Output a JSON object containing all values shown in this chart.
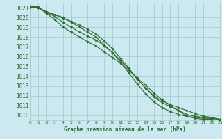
{
  "title": "Graphe pression niveau de la mer (hPa)",
  "bg_color": "#cce8f0",
  "grid_color": "#aacccc",
  "line_color": "#2d6a2d",
  "marker_color": "#2d6a2d",
  "xmin": 0,
  "xmax": 23,
  "ymin": 1009.5,
  "ymax": 1021.5,
  "yticks": [
    1010,
    1011,
    1012,
    1013,
    1014,
    1015,
    1016,
    1017,
    1018,
    1019,
    1020,
    1021
  ],
  "xticks": [
    0,
    1,
    2,
    3,
    4,
    5,
    6,
    7,
    8,
    9,
    10,
    11,
    12,
    13,
    14,
    15,
    16,
    17,
    18,
    19,
    20,
    21,
    22,
    23
  ],
  "series": [
    [
      1021.1,
      1021.1,
      1020.4,
      1019.8,
      1019.0,
      1018.5,
      1018.0,
      1017.5,
      1017.1,
      1016.5,
      1015.9,
      1015.3,
      1014.6,
      1013.8,
      1013.1,
      1012.3,
      1011.6,
      1011.0,
      1010.5,
      1009.9,
      1009.7,
      1009.6,
      1009.6,
      1009.5
    ],
    [
      1021.1,
      1021.0,
      1020.5,
      1020.3,
      1020.0,
      1019.5,
      1019.0,
      1018.5,
      1018.0,
      1017.2,
      1016.4,
      1015.4,
      1014.3,
      1013.2,
      1012.2,
      1011.4,
      1010.8,
      1010.4,
      1010.1,
      1009.9,
      1009.8,
      1009.7,
      1009.7,
      1009.6
    ],
    [
      1021.1,
      1021.0,
      1020.5,
      1020.1,
      1019.5,
      1019.0,
      1018.5,
      1018.1,
      1017.7,
      1017.1,
      1016.4,
      1015.6,
      1014.7,
      1013.7,
      1012.8,
      1011.9,
      1011.3,
      1010.9,
      1010.5,
      1010.1,
      1009.9,
      1009.8,
      1009.7,
      1009.6
    ],
    [
      1021.1,
      1021.0,
      1020.6,
      1020.3,
      1019.9,
      1019.6,
      1019.2,
      1018.8,
      1018.3,
      1017.6,
      1016.8,
      1015.8,
      1014.8,
      1013.7,
      1012.8,
      1012.0,
      1011.5,
      1011.1,
      1010.8,
      1010.5,
      1010.2,
      1009.9,
      1009.8,
      1009.6
    ]
  ]
}
